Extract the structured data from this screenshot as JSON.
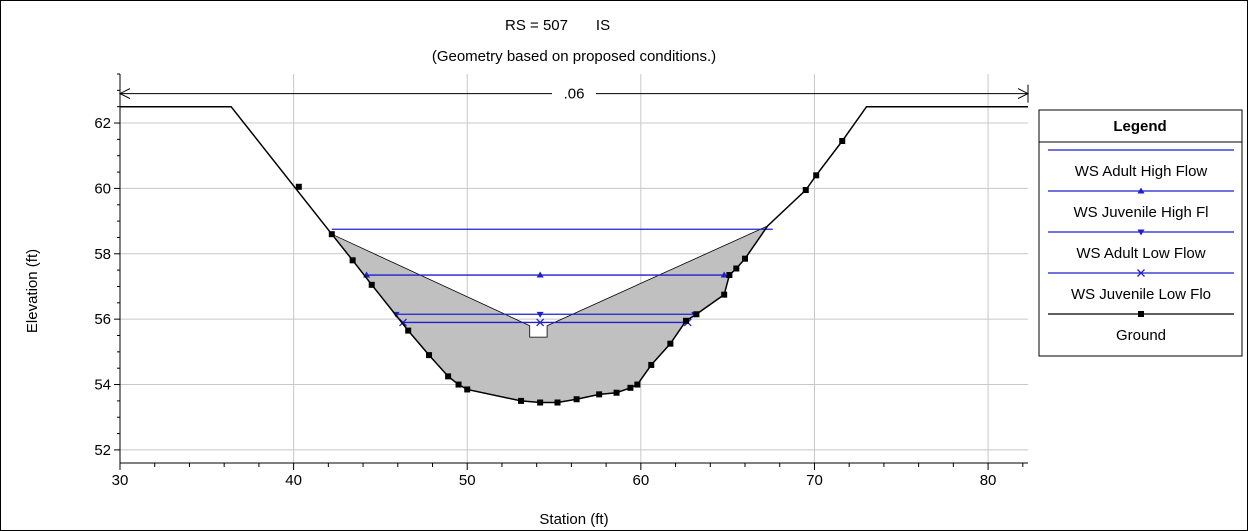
{
  "chart_data": {
    "type": "line",
    "title_rs": "RS = 507",
    "title_tag": "IS",
    "subtitle": "(Geometry based on proposed conditions.)",
    "xlabel": "Station (ft)",
    "ylabel": "Elevation (ft)",
    "xlim": [
      30,
      82.3
    ],
    "ylim": [
      51.6,
      63.5
    ],
    "xticks": [
      30,
      40,
      50,
      60,
      70,
      80
    ],
    "yticks": [
      52,
      54,
      56,
      58,
      60,
      62
    ],
    "grid": true,
    "legend_title": "Legend",
    "legend_position": "right",
    "manning_n": {
      "label": ".06",
      "x_start": 30,
      "x_end": 82.3,
      "y": 62.9
    },
    "ground": {
      "name": "Ground",
      "color": "#000000",
      "x": [
        30,
        36.4,
        42.2,
        43.4,
        44.5,
        46.6,
        47.8,
        48.9,
        49.5,
        50.0,
        53.1,
        54.2,
        55.2,
        56.3,
        57.6,
        58.6,
        59.4,
        59.8,
        60.6,
        61.7,
        62.6,
        63.2,
        64.8,
        65.1,
        65.5,
        66.0,
        67.3,
        69.5,
        70.1,
        71.6,
        73.0,
        82.3
      ],
      "y": [
        62.5,
        62.5,
        58.6,
        57.8,
        57.05,
        55.65,
        54.9,
        54.25,
        54.0,
        53.85,
        53.5,
        53.45,
        53.45,
        53.55,
        53.7,
        53.75,
        53.9,
        54.0,
        54.6,
        55.25,
        55.95,
        56.15,
        56.75,
        57.35,
        57.55,
        57.85,
        58.85,
        59.95,
        60.4,
        61.45,
        62.5,
        62.5
      ],
      "markers_x": [
        40.3,
        42.2,
        43.4,
        44.5,
        46.6,
        47.8,
        48.9,
        49.5,
        50.0,
        53.1,
        54.2,
        55.2,
        56.3,
        57.6,
        58.6,
        59.4,
        59.8,
        60.6,
        61.7,
        62.6,
        63.2,
        64.8,
        65.1,
        65.5,
        66.0,
        69.5,
        70.1,
        71.6
      ],
      "markers_y": [
        60.05,
        58.6,
        57.8,
        57.05,
        55.65,
        54.9,
        54.25,
        54.0,
        53.85,
        53.5,
        53.45,
        53.45,
        53.55,
        53.7,
        53.75,
        53.9,
        54.0,
        54.6,
        55.25,
        55.95,
        56.15,
        56.75,
        57.35,
        57.55,
        57.85,
        59.95,
        60.4,
        61.45
      ]
    },
    "fill": {
      "color": "#c0c0c0",
      "upper_x": [
        42.2,
        53.6,
        53.6,
        54.6,
        54.6,
        67.3
      ],
      "upper_y": [
        58.6,
        55.8,
        55.45,
        55.45,
        55.8,
        58.85
      ]
    },
    "series": [
      {
        "name": "WS Adult High Flow",
        "color": "#1f1fd0",
        "marker": "none",
        "y": 58.75,
        "x_start": 42.2,
        "x_end": 67.6,
        "marker_x": null
      },
      {
        "name": "WS Juvenile High Fl",
        "color": "#1f1fd0",
        "marker": "triangle-up",
        "y": 57.35,
        "x_start": 44.2,
        "x_end": 64.8,
        "marker_x": [
          44.2,
          54.2,
          64.8
        ]
      },
      {
        "name": "WS Adult Low Flow",
        "color": "#1f1fd0",
        "marker": "triangle-down",
        "y": 56.15,
        "x_start": 45.9,
        "x_end": 63.1,
        "marker_x": [
          45.9,
          54.2,
          63.1
        ]
      },
      {
        "name": "WS Juvenile Low Flo",
        "color": "#1f1fd0",
        "marker": "x",
        "y": 55.9,
        "x_start": 46.3,
        "x_end": 62.7,
        "marker_x": [
          46.3,
          54.2,
          62.7
        ]
      }
    ]
  }
}
